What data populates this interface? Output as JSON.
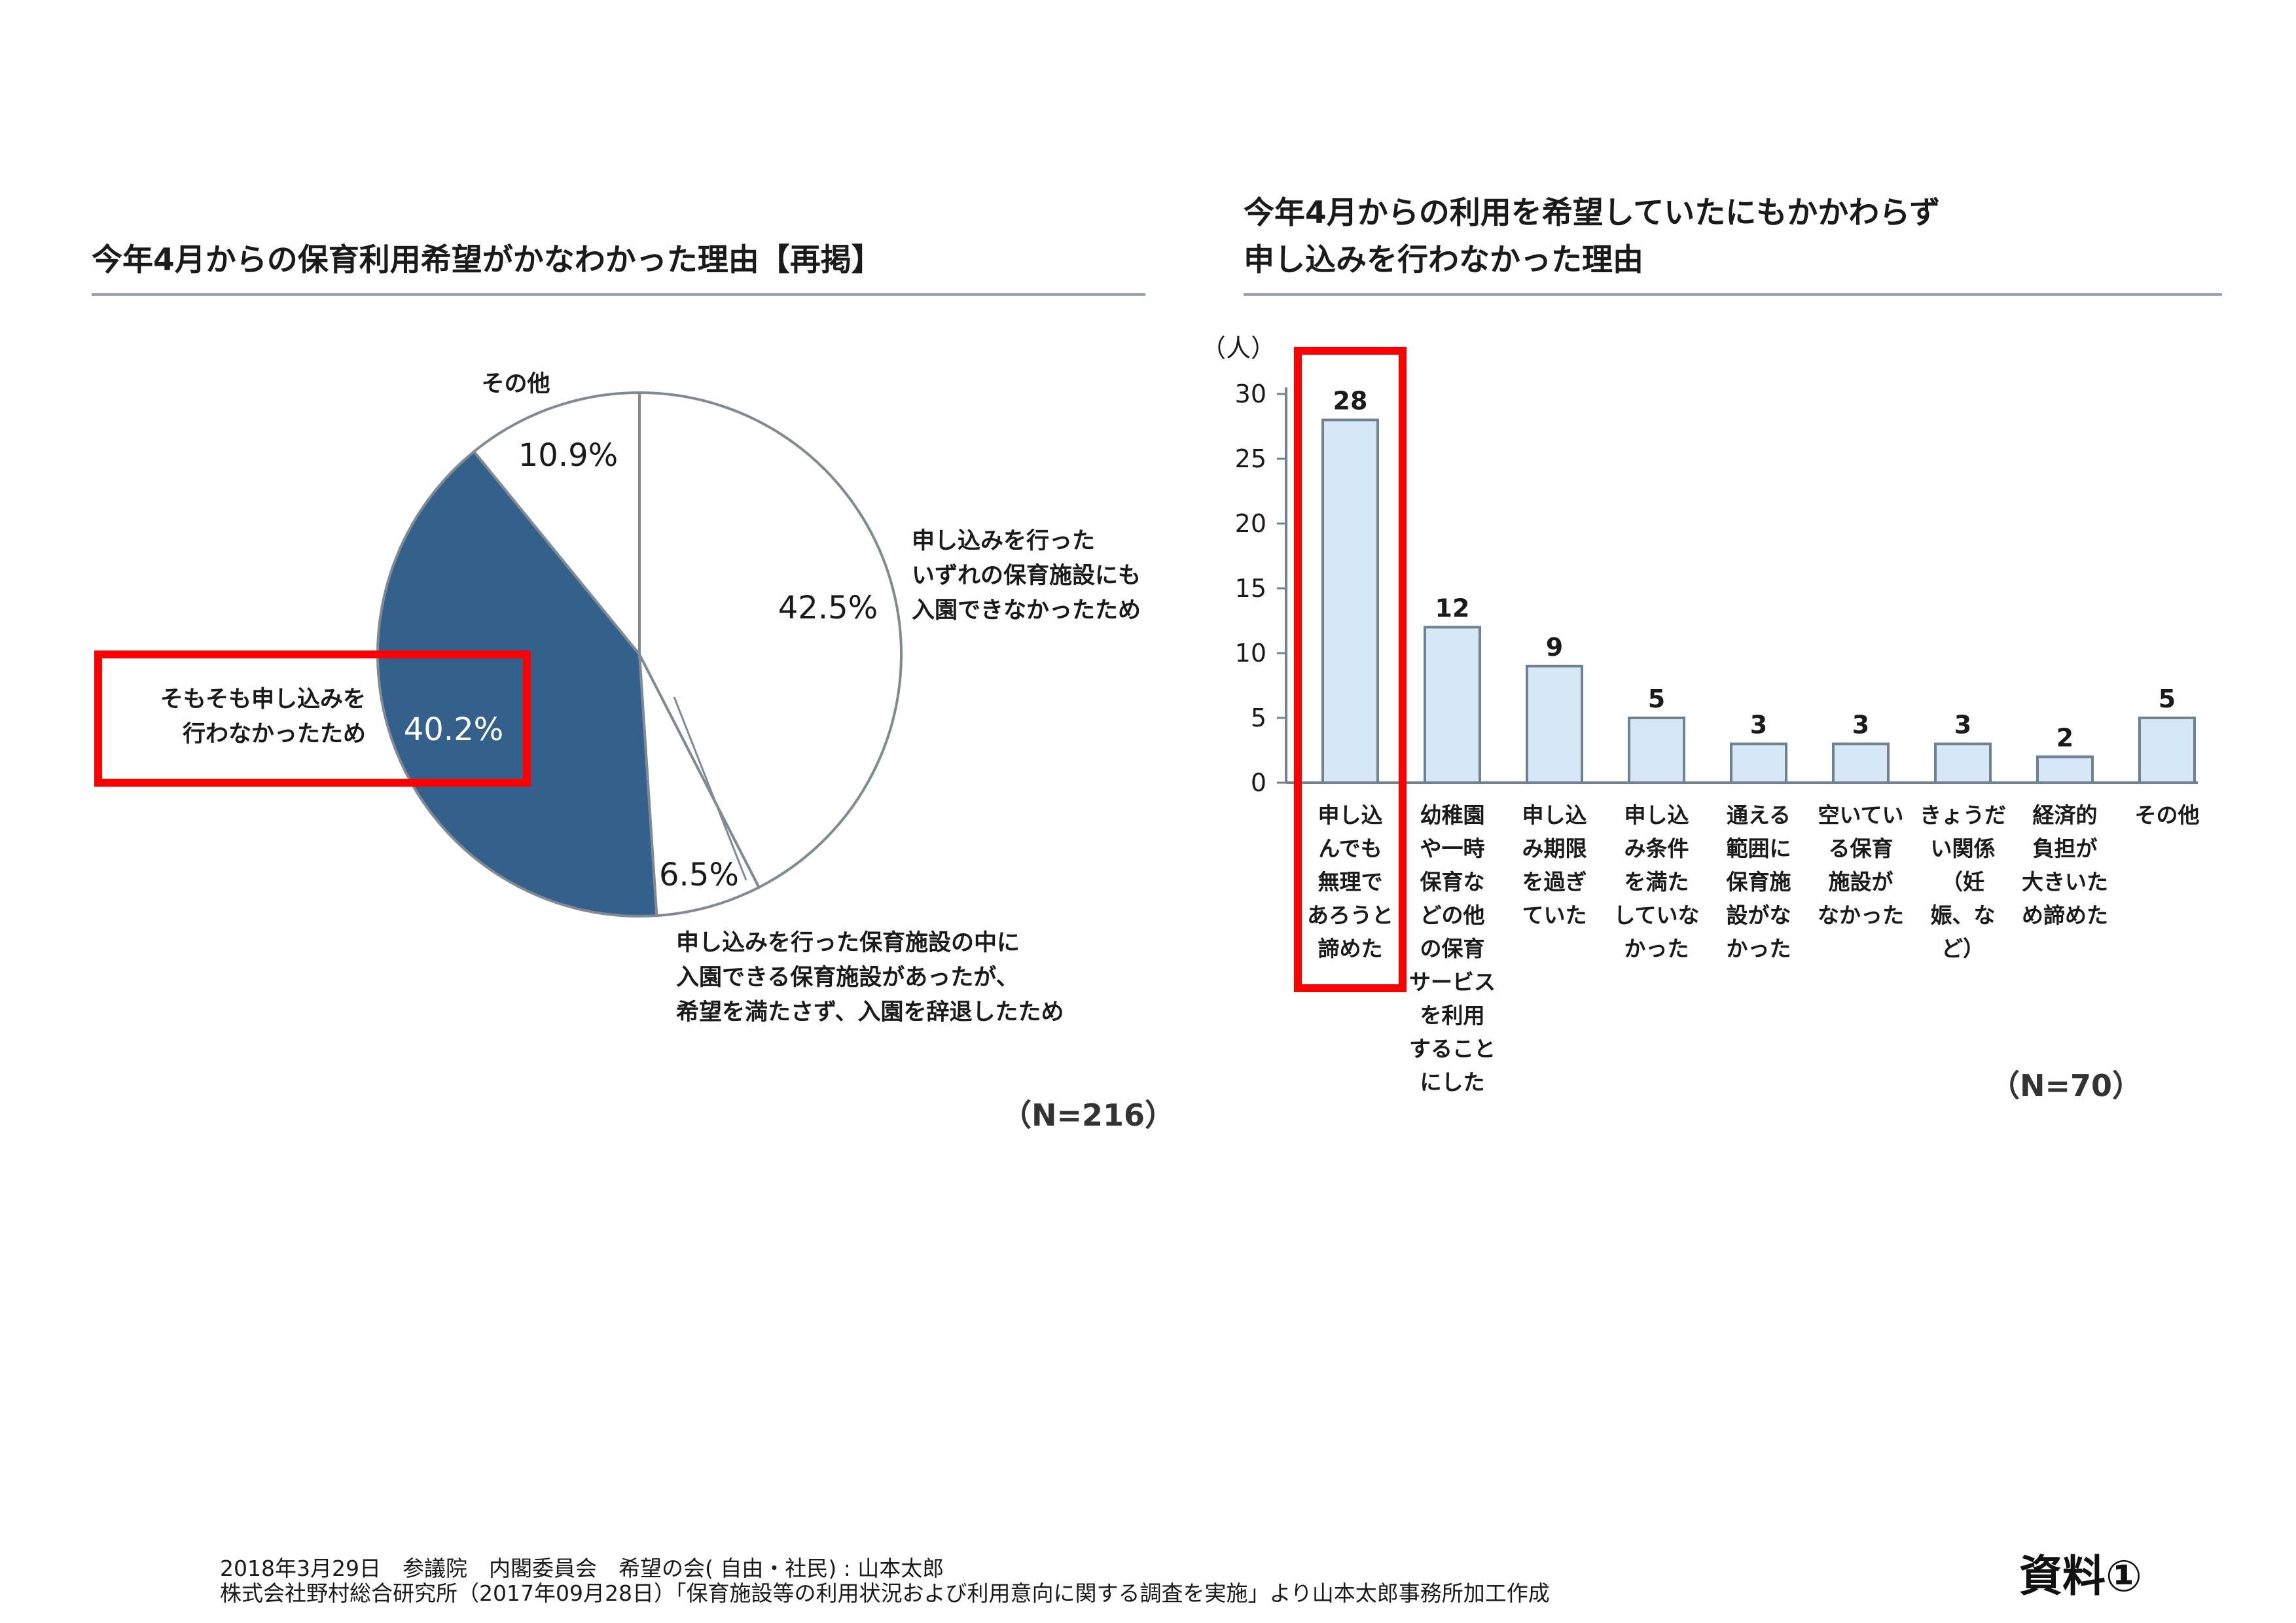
{
  "pie": {
    "title": "今年4月からの保育利用希望がかなわかった理由【再掲】",
    "n_label": "（N=216）",
    "colors": {
      "navy": "#34608c",
      "outline": "#7f8a93",
      "white": "#ffffff",
      "highlight": "#ff0000"
    }
  },
  "bar": {
    "title_line1": "今年4月からの利用を希望していたにもかかわらず",
    "title_line2": "申し込みを行わなかった理由",
    "unit": "（人）",
    "n_label": "（N=70）",
    "colors": {
      "fill": "#d8e7f5",
      "stroke": "#6d8394",
      "axis": "#6d8394",
      "highlight": "#ff0000"
    }
  },
  "chart_data": [
    {
      "type": "pie",
      "title": "今年4月からの保育利用希望がかなわかった理由【再掲】",
      "n": "（N=216）",
      "slices": [
        {
          "name": "申し込みを行った いずれの保育施設にも 入園できなかったため",
          "lines": [
            "申し込みを行った",
            "いずれの保育施設にも",
            "入園できなかったため"
          ],
          "value": 42.5,
          "label": "42.5%",
          "color": "#ffffff"
        },
        {
          "name": "申し込みを行った保育施設の中に 入園できる保育施設があったが、 希望を満たさず、入園を辞退したため",
          "lines": [
            "申し込みを行った保育施設の中に",
            "入園できる保育施設があったが、",
            "希望を満たさず、入園を辞退したため"
          ],
          "value": 6.5,
          "label": "6.5%",
          "color": "#ffffff"
        },
        {
          "name": "そもそも申し込みを 行わなかったため",
          "lines": [
            "そもそも申し込みを",
            "行わなかったため"
          ],
          "value": 40.2,
          "label": "40.2%",
          "color": "#34608c",
          "highlighted": true
        },
        {
          "name": "その他",
          "lines": [
            "その他"
          ],
          "value": 10.9,
          "label": "10.9%",
          "color": "#ffffff"
        }
      ]
    },
    {
      "type": "bar",
      "title": "今年4月からの利用を希望していたにもかかわらず 申し込みを行わなかった理由",
      "ylabel": "（人）",
      "n": "（N=70）",
      "ylim": [
        0,
        30
      ],
      "yticks": [
        0,
        5,
        10,
        15,
        20,
        25,
        30
      ],
      "categories": [
        [
          "申し込",
          "んでも",
          "無理で",
          "あろうと",
          "諦めた"
        ],
        [
          "幼稚園",
          "や一時",
          "保育な",
          "どの他",
          "の保育",
          "サービス",
          "を利用",
          "すること",
          "にした"
        ],
        [
          "申し込",
          "み期限",
          "を過ぎ",
          "ていた"
        ],
        [
          "申し込",
          "み条件",
          "を満た",
          "していな",
          "かった"
        ],
        [
          "通える",
          "範囲に",
          "保育施",
          "設がな",
          "かった"
        ],
        [
          "空いてい",
          "る保育",
          "施設が",
          "なかった"
        ],
        [
          "きょうだ",
          "い関係",
          "（妊",
          "娠、な",
          "ど）"
        ],
        [
          "経済的",
          "負担が",
          "大きいた",
          "め諦めた"
        ],
        [
          "その他"
        ]
      ],
      "values": [
        28,
        12,
        9,
        5,
        3,
        3,
        3,
        2,
        5
      ],
      "highlighted_index": 0
    }
  ],
  "footer": {
    "line1": "2018年3月29日　参議院　内閣委員会　希望の会( 自由・社民) : 山本太郎",
    "line2": "株式会社野村総合研究所（2017年09月28日）「保育施設等の利用状況および利用意向に関する調査を実施」より山本太郎事務所加工作成",
    "doc_label": "資料①"
  }
}
